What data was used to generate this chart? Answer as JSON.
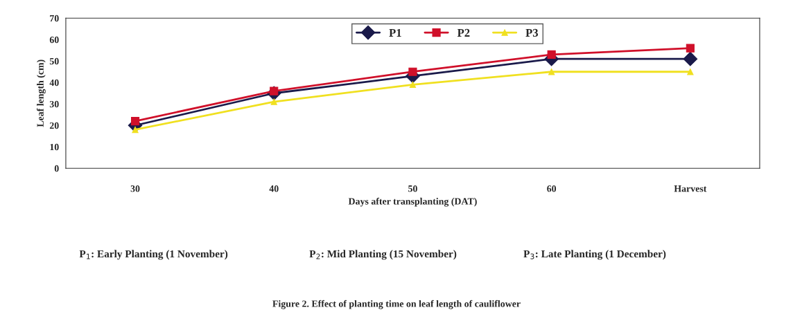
{
  "chart_data": {
    "type": "line",
    "xlabel": "Days after transplanting (DAT)",
    "ylabel": "Leaf length (cm)",
    "categories": [
      "30",
      "40",
      "50",
      "60",
      "Harvest"
    ],
    "series": [
      {
        "name": "P1",
        "color": "#1a1a4a",
        "marker": "diamond",
        "values": [
          20,
          35,
          43,
          51,
          51
        ]
      },
      {
        "name": "P2",
        "color": "#d0102a",
        "marker": "square",
        "values": [
          22,
          36,
          45,
          53,
          56
        ]
      },
      {
        "name": "P3",
        "color": "#f0e020",
        "marker": "triangle",
        "values": [
          18,
          31,
          39,
          45,
          45
        ]
      }
    ],
    "ylim": [
      0,
      70
    ],
    "yticks": [
      0,
      10,
      20,
      30,
      40,
      50,
      60,
      70
    ],
    "grid": false,
    "legend": "top",
    "annotations": [
      "P$_{1}$: Early Planting (1 November)",
      "P$_{2}$: Mid Planting (15 November)",
      "P$_{3}$: Late Planting (1 December)",
      "Figure 2. Effect of planting time on leaf length of cauliflower"
    ]
  }
}
